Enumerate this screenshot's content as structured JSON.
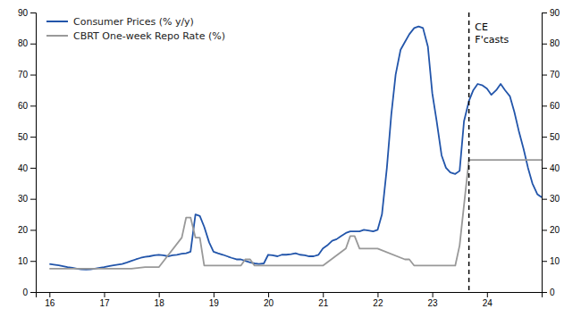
{
  "chart_data": {
    "type": "line",
    "xlim": [
      15.75,
      25.0
    ],
    "xticks": [
      16,
      17,
      18,
      19,
      20,
      21,
      22,
      23,
      24
    ],
    "ylim": [
      0,
      90
    ],
    "yticks": [
      0,
      10,
      20,
      30,
      40,
      50,
      60,
      70,
      80,
      90
    ],
    "y2lim": [
      0,
      90
    ],
    "y2ticks": [
      0,
      10,
      20,
      30,
      40,
      50,
      60,
      70,
      80,
      90
    ],
    "grid": false,
    "legend": "upper left",
    "vline": {
      "x": 23.67,
      "color": "black",
      "line_style": "dashed"
    },
    "annotations": [
      {
        "text": "CE\nF'casts",
        "x": 23.78,
        "y": 87
      }
    ],
    "series": [
      {
        "name": "Consumer Prices (% y/y)",
        "color": "#2255AA",
        "x": [
          16.0,
          16.08,
          16.17,
          16.25,
          16.33,
          16.42,
          16.5,
          16.58,
          16.67,
          16.75,
          16.83,
          16.92,
          17.0,
          17.08,
          17.17,
          17.25,
          17.33,
          17.42,
          17.5,
          17.58,
          17.67,
          17.75,
          17.83,
          17.92,
          18.0,
          18.08,
          18.17,
          18.25,
          18.33,
          18.42,
          18.5,
          18.58,
          18.67,
          18.75,
          18.83,
          18.92,
          19.0,
          19.08,
          19.17,
          19.25,
          19.33,
          19.42,
          19.5,
          19.58,
          19.67,
          19.75,
          19.83,
          19.92,
          20.0,
          20.08,
          20.17,
          20.25,
          20.33,
          20.42,
          20.5,
          20.58,
          20.67,
          20.75,
          20.83,
          20.92,
          21.0,
          21.08,
          21.17,
          21.25,
          21.33,
          21.42,
          21.5,
          21.58,
          21.67,
          21.75,
          21.83,
          21.92,
          22.0,
          22.08,
          22.17,
          22.25,
          22.33,
          22.42,
          22.5,
          22.58,
          22.67,
          22.75,
          22.83,
          22.92,
          23.0,
          23.08,
          23.17,
          23.25,
          23.33,
          23.42,
          23.5,
          23.58,
          23.67,
          23.75,
          23.83,
          23.92,
          24.0,
          24.08,
          24.17,
          24.25,
          24.33,
          24.42,
          24.5,
          24.58,
          24.67,
          24.75,
          24.83,
          24.92,
          25.0
        ],
        "values": [
          9.0,
          8.8,
          8.6,
          8.3,
          8.0,
          7.8,
          7.5,
          7.3,
          7.2,
          7.3,
          7.5,
          7.8,
          8.0,
          8.3,
          8.6,
          8.8,
          9.0,
          9.5,
          10.0,
          10.5,
          11.0,
          11.3,
          11.5,
          11.8,
          12.0,
          11.8,
          11.5,
          11.8,
          12.0,
          12.3,
          12.5,
          13.0,
          25.0,
          24.5,
          21.0,
          16.0,
          13.0,
          12.5,
          12.0,
          11.5,
          11.0,
          10.5,
          10.5,
          10.0,
          9.5,
          9.2,
          9.0,
          9.2,
          12.0,
          11.8,
          11.5,
          12.0,
          12.0,
          12.2,
          12.5,
          12.0,
          11.8,
          11.5,
          11.5,
          12.0,
          14.0,
          15.0,
          16.5,
          17.0,
          18.0,
          19.0,
          19.5,
          19.5,
          19.5,
          20.0,
          19.8,
          19.5,
          20.0,
          25.0,
          40.0,
          57.0,
          70.0,
          78.0,
          80.5,
          83.0,
          85.0,
          85.5,
          85.0,
          79.0,
          64.0,
          55.0,
          44.0,
          40.0,
          38.5,
          38.0,
          39.0,
          55.0,
          61.5,
          65.0,
          67.0,
          66.5,
          65.5,
          63.5,
          65.0,
          67.0,
          65.0,
          63.0,
          58.0,
          52.0,
          46.0,
          40.0,
          35.0,
          31.5,
          30.5
        ]
      },
      {
        "name": "CBRT One-week Repo Rate (%)",
        "color": "#999999",
        "x": [
          16.0,
          16.5,
          17.0,
          17.5,
          17.75,
          17.92,
          18.0,
          18.42,
          18.5,
          18.58,
          18.67,
          18.75,
          18.83,
          18.92,
          19.0,
          19.5,
          19.58,
          19.67,
          19.75,
          20.0,
          20.5,
          21.0,
          21.42,
          21.5,
          21.58,
          21.67,
          22.0,
          22.5,
          22.58,
          22.67,
          22.75,
          23.0,
          23.25,
          23.42,
          23.5,
          23.58,
          23.67,
          23.75,
          24.0,
          24.5,
          24.83,
          25.0
        ],
        "values": [
          7.5,
          7.5,
          7.5,
          7.5,
          8.0,
          8.0,
          8.0,
          17.5,
          24.0,
          24.0,
          17.5,
          17.5,
          8.5,
          8.5,
          8.5,
          8.5,
          10.5,
          10.5,
          8.5,
          8.5,
          8.5,
          8.5,
          14.0,
          18.0,
          18.0,
          14.0,
          14.0,
          10.5,
          10.5,
          8.5,
          8.5,
          8.5,
          8.5,
          8.5,
          15.0,
          28.0,
          42.5,
          42.5,
          42.5,
          42.5,
          42.5,
          42.5
        ]
      }
    ]
  }
}
